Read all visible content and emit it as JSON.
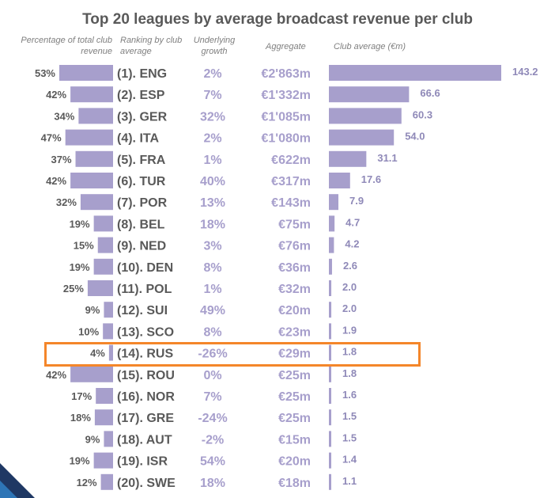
{
  "headers": {
    "pct_line1": "Percentage of total club",
    "pct_line2": "revenue",
    "rank_line1": "Ranking by club",
    "rank_line2": "average",
    "growth_line1": "Underlying",
    "growth_line2": "growth",
    "aggregate": "Aggregate",
    "club_avg": "Club average (€m)"
  },
  "colors": {
    "bar": "#a79fcc",
    "highlight": "#f4862a",
    "text": "#595959"
  },
  "chart_data": {
    "type": "bar",
    "title": "Top 20 leagues by average broadcast revenue per club",
    "highlighted": "(14). RUS",
    "categories": [
      "(1). ENG",
      "(2). ESP",
      "(3). GER",
      "(4). ITA",
      "(5). FRA",
      "(6). TUR",
      "(7). POR",
      "(8). BEL",
      "(9). NED",
      "(10). DEN",
      "(11). POL",
      "(12). SUI",
      "(13). SCO",
      "(14). RUS",
      "(15). ROU",
      "(16). NOR",
      "(17). GRE",
      "(18). AUT",
      "(19). ISR",
      "(20). SWE"
    ],
    "pct_values": [
      53,
      42,
      34,
      47,
      37,
      42,
      32,
      19,
      15,
      19,
      25,
      9,
      10,
      4,
      42,
      17,
      18,
      9,
      19,
      12
    ],
    "pct_labels": [
      "53%",
      "42%",
      "34%",
      "47%",
      "37%",
      "42%",
      "32%",
      "19%",
      "15%",
      "19%",
      "25%",
      "9%",
      "10%",
      "4%",
      "42%",
      "17%",
      "18%",
      "9%",
      "19%",
      "12%"
    ],
    "growth": [
      "2%",
      "7%",
      "32%",
      "2%",
      "1%",
      "40%",
      "13%",
      "18%",
      "3%",
      "8%",
      "1%",
      "49%",
      "8%",
      "-26%",
      "0%",
      "7%",
      "-24%",
      "-2%",
      "54%",
      "18%"
    ],
    "aggregate": [
      "€2'863m",
      "€1'332m",
      "€1'085m",
      "€1'080m",
      "€622m",
      "€317m",
      "€143m",
      "€75m",
      "€76m",
      "€36m",
      "€32m",
      "€20m",
      "€23m",
      "€29m",
      "€25m",
      "€25m",
      "€25m",
      "€15m",
      "€20m",
      "€18m"
    ],
    "club_avg": [
      143.2,
      66.6,
      60.3,
      54.0,
      31.1,
      17.6,
      7.9,
      4.7,
      4.2,
      2.6,
      2.0,
      2.0,
      1.9,
      1.8,
      1.8,
      1.6,
      1.5,
      1.5,
      1.4,
      1.1
    ],
    "club_avg_labels": [
      "143.2",
      "66.6",
      "60.3",
      "54.0",
      "31.1",
      "17.6",
      "7.9",
      "4.7",
      "4.2",
      "2.6",
      "2.0",
      "2.0",
      "1.9",
      "1.8",
      "1.8",
      "1.6",
      "1.5",
      "1.5",
      "1.4",
      "1.1"
    ]
  }
}
